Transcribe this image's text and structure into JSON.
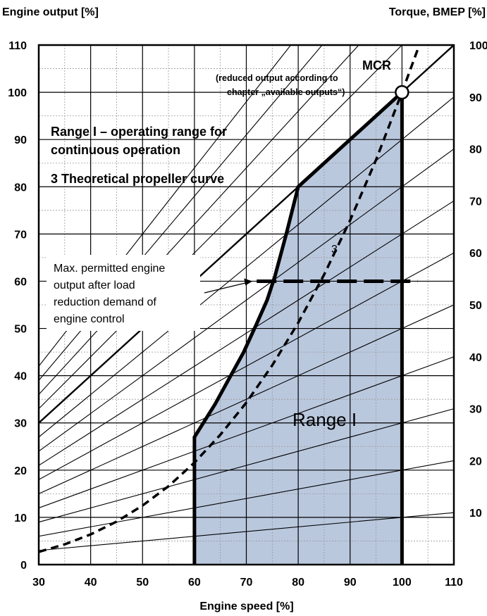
{
  "chart_data": {
    "type": "line",
    "xlabel": "Engine speed [%]",
    "ylabel": "Engine output [%]",
    "y2label": "Torque, BMEP [%]",
    "xlim": [
      30,
      110
    ],
    "ylim": [
      0,
      110
    ],
    "x_ticks": [
      30,
      40,
      50,
      60,
      70,
      80,
      90,
      100,
      110
    ],
    "y_ticks": [
      0,
      10,
      20,
      30,
      40,
      50,
      60,
      70,
      80,
      90,
      100,
      110
    ],
    "y2_tick_labels": [
      "100",
      "90",
      "80",
      "70",
      "60",
      "50",
      "40",
      "30",
      "20",
      "10"
    ],
    "grid": true,
    "range_boundary": {
      "name": "Range I",
      "x": [
        60,
        60,
        64,
        67,
        69.5,
        72,
        74,
        75.5,
        77.7,
        80,
        100,
        100
      ],
      "y": [
        0,
        27,
        34,
        40,
        45,
        51,
        56,
        61,
        70,
        80,
        100,
        0
      ],
      "fill": "#bac8de"
    },
    "propeller_curve": {
      "name": "3",
      "x": [
        30,
        35,
        40,
        45,
        50,
        55,
        60,
        65,
        70,
        75,
        80,
        85,
        90,
        95,
        100,
        103
      ],
      "y": [
        2.7,
        4.3,
        6.4,
        9.1,
        12.5,
        16.6,
        21.6,
        27.5,
        34.3,
        42.2,
        51.2,
        61.4,
        72.9,
        85.7,
        100,
        109
      ]
    },
    "load_reduction_line": {
      "y": 60,
      "x": [
        72,
        103
      ]
    },
    "torque_lines_pct": [
      10,
      20,
      30,
      40,
      50,
      60,
      70,
      80,
      90,
      100,
      110,
      120,
      130,
      140
    ],
    "mcr_point": {
      "x": 100,
      "y": 100
    }
  },
  "labels": {
    "mcr": "MCR",
    "mcr_note_1": "(reduced output according  to",
    "mcr_note_2": "chapter „available outputs“)",
    "range_title_1": "Range I – operating range for",
    "range_title_2": "continuous operation",
    "propeller_note": "3  Theoretical propeller curve",
    "max_permitted_1": "Max. permitted engine",
    "max_permitted_2": "output after load",
    "max_permitted_3": "reduction demand of",
    "max_permitted_4": "engine control",
    "range_label": "Range I",
    "curve_label": "3"
  },
  "colors": {
    "fill": "#bac8de",
    "line": "#000000",
    "minor_grid": "#999999",
    "background": "#ffffff"
  }
}
